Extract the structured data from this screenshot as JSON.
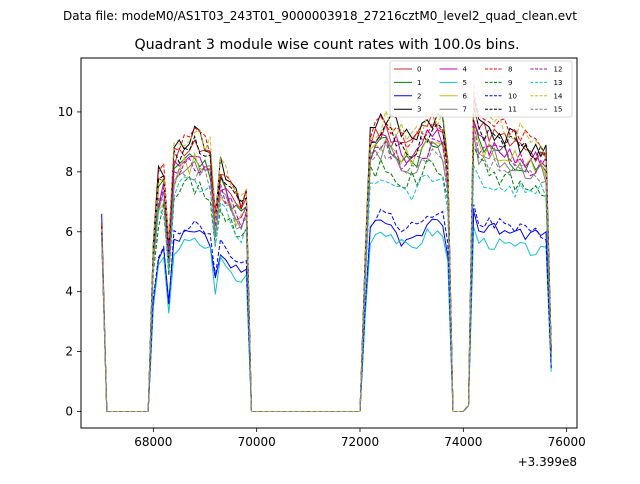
{
  "suptitle": "Data file: modeM0/AS1T03_243T01_9000003918_27216cztM0_level2_quad_clean.evt",
  "chart_data": {
    "type": "line",
    "title": "Quadrant 3 module wise count rates with 100.0s bins.",
    "xlabel": "",
    "ylabel": "",
    "x_offset_label": "+3.399e8",
    "xlim": [
      66600,
      76200
    ],
    "ylim": [
      -0.55,
      11.8
    ],
    "x_ticks": [
      68000,
      70000,
      72000,
      74000,
      76000
    ],
    "x_tick_labels": [
      "68000",
      "70000",
      "72000",
      "74000",
      "76000"
    ],
    "y_ticks": [
      0,
      2,
      4,
      6,
      8,
      10
    ],
    "y_tick_labels": [
      "0",
      "2",
      "4",
      "6",
      "8",
      "10"
    ],
    "grid": false,
    "legend_position": "top-right",
    "legend_columns": 4,
    "series": [
      {
        "name": "0",
        "color": "#d62728",
        "dash": "solid",
        "jitter": 0.35,
        "seed": 11,
        "levels": {
          "a0": 6.3,
          "a1": 7.5,
          "b0": 9.0,
          "b1": 9.5,
          "c0": 9.5,
          "c1": 8.3
        }
      },
      {
        "name": "1",
        "color": "#008000",
        "dash": "solid",
        "jitter": 0.35,
        "seed": 23,
        "levels": {
          "a0": 6.0,
          "a1": 7.2,
          "b0": 8.5,
          "b1": 8.7,
          "c0": 9.0,
          "c1": 7.9
        }
      },
      {
        "name": "2",
        "color": "#0000ff",
        "dash": "solid",
        "jitter": 0.25,
        "seed": 37,
        "levels": {
          "a0": 6.6,
          "a1": 5.0,
          "b0": 6.0,
          "b1": 5.9,
          "c0": 6.2,
          "c1": 5.9
        }
      },
      {
        "name": "3",
        "color": "#000000",
        "dash": "solid",
        "jitter": 0.4,
        "seed": 41,
        "levels": {
          "a0": 6.2,
          "a1": 7.8,
          "b0": 9.5,
          "b1": 9.5,
          "c0": 9.7,
          "c1": 8.5
        }
      },
      {
        "name": "4",
        "color": "#bf00bf",
        "dash": "solid",
        "jitter": 0.35,
        "seed": 53,
        "levels": {
          "a0": 6.1,
          "a1": 7.2,
          "b0": 9.0,
          "b1": 8.8,
          "c0": 9.0,
          "c1": 8.2
        }
      },
      {
        "name": "5",
        "color": "#17becf",
        "dash": "solid",
        "jitter": 0.22,
        "seed": 67,
        "levels": {
          "a0": 5.8,
          "a1": 4.8,
          "b0": 5.8,
          "b1": 5.7,
          "c0": 5.7,
          "c1": 5.3
        }
      },
      {
        "name": "6",
        "color": "#bcbd22",
        "dash": "solid",
        "jitter": 0.35,
        "seed": 71,
        "levels": {
          "a0": 6.0,
          "a1": 7.0,
          "b0": 8.6,
          "b1": 8.8,
          "c0": 8.8,
          "c1": 8.0
        }
      },
      {
        "name": "7",
        "color": "#7f7f7f",
        "dash": "solid",
        "jitter": 0.35,
        "seed": 83,
        "levels": {
          "a0": 6.0,
          "a1": 7.0,
          "b0": 8.4,
          "b1": 8.5,
          "c0": 8.6,
          "c1": 7.9
        }
      },
      {
        "name": "8",
        "color": "#ff0000",
        "dash": "dashed",
        "jitter": 0.35,
        "seed": 97,
        "levels": {
          "a0": 6.3,
          "a1": 7.8,
          "b0": 9.3,
          "b1": 9.4,
          "c0": 9.9,
          "c1": 8.8
        }
      },
      {
        "name": "9",
        "color": "#008000",
        "dash": "dashed",
        "jitter": 0.35,
        "seed": 101,
        "levels": {
          "a0": 5.8,
          "a1": 6.4,
          "b0": 7.9,
          "b1": 8.0,
          "c0": 8.2,
          "c1": 7.2
        }
      },
      {
        "name": "10",
        "color": "#0000ff",
        "dash": "dashed",
        "jitter": 0.25,
        "seed": 113,
        "levels": {
          "a0": 5.9,
          "a1": 5.3,
          "b0": 6.4,
          "b1": 6.4,
          "c0": 6.4,
          "c1": 5.8
        }
      },
      {
        "name": "11",
        "color": "#000000",
        "dash": "dashed",
        "jitter": 0.35,
        "seed": 127,
        "levels": {
          "a0": 6.0,
          "a1": 7.5,
          "b0": 9.0,
          "b1": 9.0,
          "c0": 9.4,
          "c1": 8.5
        }
      },
      {
        "name": "12",
        "color": "#bf00bf",
        "dash": "dashed",
        "jitter": 0.35,
        "seed": 131,
        "levels": {
          "a0": 6.0,
          "a1": 7.0,
          "b0": 8.6,
          "b1": 8.6,
          "c0": 8.9,
          "c1": 8.0
        }
      },
      {
        "name": "13",
        "color": "#17becf",
        "dash": "dashed",
        "jitter": 0.3,
        "seed": 139,
        "levels": {
          "a0": 5.8,
          "a1": 6.5,
          "b0": 7.6,
          "b1": 7.6,
          "c0": 7.6,
          "c1": 7.3
        }
      },
      {
        "name": "14",
        "color": "#bcbd22",
        "dash": "dashed",
        "jitter": 0.4,
        "seed": 149,
        "levels": {
          "a0": 6.1,
          "a1": 7.8,
          "b0": 9.3,
          "b1": 9.6,
          "c0": 10.1,
          "c1": 8.8
        }
      },
      {
        "name": "15",
        "color": "#7f7f7f",
        "dash": "dashed",
        "jitter": 0.35,
        "seed": 157,
        "levels": {
          "a0": 5.8,
          "a1": 6.8,
          "b0": 8.2,
          "b1": 8.2,
          "c0": 8.4,
          "c1": 7.6
        }
      }
    ]
  }
}
